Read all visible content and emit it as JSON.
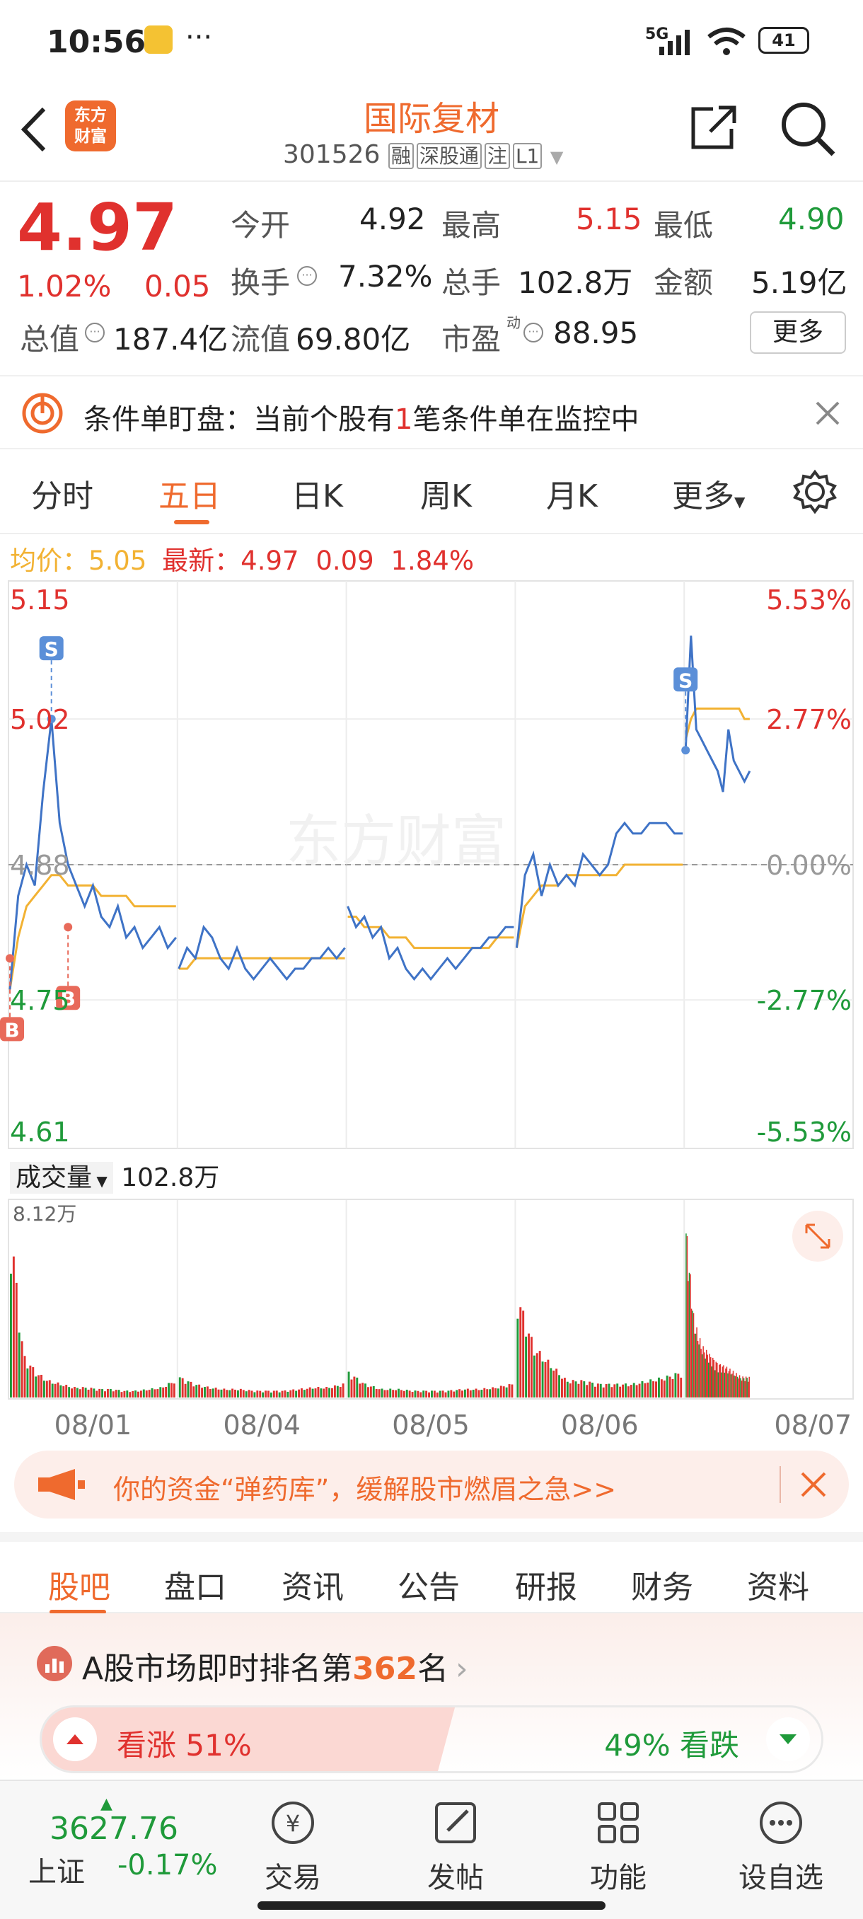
{
  "status_bar": {
    "time": "10:56",
    "dots": "···",
    "network": "5G",
    "battery": "41"
  },
  "header": {
    "app_logo": "东方\n财富",
    "title": "国际复材",
    "code": "301526",
    "tags": [
      "融",
      "深股通",
      "注",
      "L1"
    ]
  },
  "quote": {
    "price": "4.97",
    "change_pct": "1.02%",
    "change_amt": "0.05",
    "open_label": "今开",
    "open": "4.92",
    "high_label": "最高",
    "high": "5.15",
    "low_label": "最低",
    "low": "4.90",
    "turnover_label": "换手",
    "turnover": "7.32%",
    "volume_label": "总手",
    "volume": "102.8万",
    "amount_label": "金额",
    "amount": "5.19亿",
    "mktcap_label": "总值",
    "mktcap": "187.4亿",
    "float_label": "流值",
    "float": "69.80亿",
    "pe_label": "市盈",
    "pe_sup": "动",
    "pe": "88.95",
    "more": "更多"
  },
  "alert": {
    "prefix": "条件单盯盘：当前个股有",
    "count": "1",
    "suffix": "笔条件单在监控中"
  },
  "chart_tabs": [
    "分时",
    "五日",
    "日K",
    "周K",
    "月K",
    "更多"
  ],
  "active_tab": "五日",
  "avg_line": {
    "avg_label": "均价：",
    "avg": "5.05",
    "latest_label": "最新：",
    "latest": "4.97",
    "chg": "0.09",
    "pct": "1.84%"
  },
  "chart_data": {
    "type": "line",
    "watermark": "东方财富",
    "y_left_ticks": [
      "5.15",
      "5.02",
      "4.88",
      "4.75",
      "4.61"
    ],
    "y_right_ticks": [
      "5.53%",
      "2.77%",
      "0.00%",
      "-2.77%",
      "-5.53%"
    ],
    "ylim": [
      4.61,
      5.15
    ],
    "prev_close": 4.88,
    "x_labels": [
      "08/01",
      "08/04",
      "08/05",
      "08/06",
      "08/07"
    ],
    "days": [
      {
        "price": [
          4.76,
          4.85,
          4.88,
          4.86,
          4.95,
          5.02,
          4.92,
          4.88,
          4.86,
          4.84,
          4.86,
          4.83,
          4.82,
          4.84,
          4.81,
          4.82,
          4.8,
          4.81,
          4.82,
          4.8,
          4.81
        ],
        "avg": [
          4.76,
          4.81,
          4.84,
          4.85,
          4.86,
          4.87,
          4.87,
          4.86,
          4.86,
          4.86,
          4.86,
          4.85,
          4.85,
          4.85,
          4.85,
          4.84,
          4.84,
          4.84,
          4.84,
          4.84,
          4.84
        ]
      },
      {
        "price": [
          4.78,
          4.8,
          4.79,
          4.82,
          4.81,
          4.79,
          4.78,
          4.8,
          4.78,
          4.77,
          4.78,
          4.79,
          4.78,
          4.77,
          4.78,
          4.78,
          4.79,
          4.79,
          4.8,
          4.79,
          4.8
        ],
        "avg": [
          4.78,
          4.78,
          4.79,
          4.79,
          4.79,
          4.79,
          4.79,
          4.79,
          4.79,
          4.79,
          4.79,
          4.79,
          4.79,
          4.79,
          4.79,
          4.79,
          4.79,
          4.79,
          4.79,
          4.79,
          4.79
        ]
      },
      {
        "price": [
          4.84,
          4.82,
          4.83,
          4.81,
          4.82,
          4.79,
          4.8,
          4.78,
          4.77,
          4.78,
          4.77,
          4.78,
          4.79,
          4.78,
          4.79,
          4.8,
          4.8,
          4.81,
          4.81,
          4.82,
          4.82
        ],
        "avg": [
          4.83,
          4.83,
          4.82,
          4.82,
          4.82,
          4.81,
          4.81,
          4.81,
          4.8,
          4.8,
          4.8,
          4.8,
          4.8,
          4.8,
          4.8,
          4.8,
          4.8,
          4.8,
          4.81,
          4.81,
          4.81
        ]
      },
      {
        "price": [
          4.8,
          4.87,
          4.89,
          4.85,
          4.88,
          4.86,
          4.87,
          4.86,
          4.89,
          4.88,
          4.87,
          4.88,
          4.91,
          4.92,
          4.91,
          4.91,
          4.92,
          4.92,
          4.92,
          4.91,
          4.91
        ],
        "avg": [
          4.8,
          4.84,
          4.85,
          4.86,
          4.86,
          4.86,
          4.87,
          4.87,
          4.87,
          4.87,
          4.87,
          4.87,
          4.87,
          4.88,
          4.88,
          4.88,
          4.88,
          4.88,
          4.88,
          4.88,
          4.88
        ]
      },
      {
        "price": [
          4.99,
          5.1,
          5.01,
          5.0,
          4.99,
          4.98,
          4.97,
          4.95,
          5.01,
          4.98,
          4.97,
          4.96,
          4.97
        ],
        "avg": [
          5.0,
          5.02,
          5.03,
          5.03,
          5.03,
          5.03,
          5.03,
          5.03,
          5.03,
          5.03,
          5.03,
          5.02,
          5.02
        ]
      }
    ],
    "markers": [
      {
        "label": "B",
        "day": 0,
        "position": "start",
        "price": 4.79
      },
      {
        "label": "S",
        "day": 0,
        "position": "peak",
        "price": 5.02
      },
      {
        "label": "B",
        "day": 0,
        "position": "mid",
        "price": 4.82
      },
      {
        "label": "S",
        "day": 4,
        "position": "start",
        "price": 4.99
      }
    ]
  },
  "volume_chart": {
    "label": "成交量",
    "total": "102.8万",
    "max_label": "8.12万",
    "day_profiles": [
      [
        1.0,
        0.25,
        0.15,
        0.1,
        0.08,
        0.06,
        0.06,
        0.05,
        0.05,
        0.04,
        0.04,
        0.05,
        0.06,
        0.1
      ],
      [
        0.12,
        0.08,
        0.06,
        0.05,
        0.05,
        0.04,
        0.04,
        0.04,
        0.05,
        0.06,
        0.06,
        0.08
      ],
      [
        0.15,
        0.08,
        0.05,
        0.05,
        0.04,
        0.04,
        0.04,
        0.05,
        0.05,
        0.06,
        0.08
      ],
      [
        0.6,
        0.3,
        0.2,
        0.1,
        0.1,
        0.08,
        0.08,
        0.08,
        0.1,
        0.12,
        0.15
      ],
      [
        1.0,
        0.45,
        0.3,
        0.25,
        0.2,
        0.18,
        0.15,
        0.12,
        0.12
      ]
    ]
  },
  "ad": {
    "text": "你的资金“弹药库”，缓解股市燃眉之急>>"
  },
  "bottom_tabs": [
    "股吧",
    "盘口",
    "资讯",
    "公告",
    "研报",
    "财务",
    "资料"
  ],
  "active_bottom_tab": "股吧",
  "rank": {
    "prefix": "A股市场即时排名第",
    "rank": "362",
    "suffix": "名"
  },
  "sentiment": {
    "up_label": "看涨",
    "up_pct": "51%",
    "down_pct": "49%",
    "down_label": "看跌",
    "up_share": 0.51
  },
  "footer": {
    "index_value": "3627.76",
    "index_name": "上证",
    "index_chg": "-0.17%",
    "items": [
      "交易",
      "发帖",
      "功能",
      "设自选"
    ]
  },
  "colors": {
    "up": "#e0312e",
    "down": "#1f9a3a",
    "accent": "#ef6a2e",
    "price_line": "#3f73c6",
    "avg_line": "#f2b233"
  }
}
